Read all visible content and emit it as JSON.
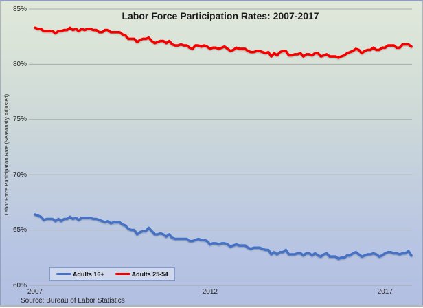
{
  "chart": {
    "title": "Labor Force Participation Rates: 2007-2017",
    "y_axis_title": "Labor Force Participation Rate (Seasonally Adjusted)",
    "source": "Source: Bureau of Labor Statistics"
  },
  "legend": {
    "items": [
      {
        "label": "Adults 16+",
        "color": "#4472C4"
      },
      {
        "label": "Adults 25-54",
        "color": "#F40000"
      }
    ]
  },
  "chart_data": {
    "type": "line",
    "title": "Labor Force Participation Rates: 2007-2017",
    "ylabel": "Labor Force Participation Rate (Seasonally Adjusted)",
    "ylim": [
      60,
      85
    ],
    "ytick_labels": [
      "85%",
      "80%",
      "75%",
      "70%",
      "65%",
      "60%"
    ],
    "ytick_values": [
      85,
      80,
      75,
      70,
      65,
      60
    ],
    "xticks": [
      {
        "label": "2007",
        "month_index": 0
      },
      {
        "label": "2012",
        "month_index": 60
      },
      {
        "label": "2017",
        "month_index": 120
      }
    ],
    "x_unit": "monthly, Jan 2007 through Oct 2017",
    "grid": "horizontal",
    "legend_position": "bottom-left",
    "series": [
      {
        "name": "Adults 16+",
        "color": "#4472C4",
        "values": [
          66.4,
          66.3,
          66.2,
          65.9,
          66.0,
          66.0,
          66.0,
          65.8,
          66.0,
          65.8,
          66.0,
          66.0,
          66.2,
          66.0,
          66.1,
          65.9,
          66.1,
          66.1,
          66.1,
          66.1,
          66.0,
          66.0,
          65.9,
          65.8,
          65.7,
          65.8,
          65.6,
          65.7,
          65.7,
          65.7,
          65.5,
          65.4,
          65.1,
          65.0,
          65.0,
          64.6,
          64.8,
          64.9,
          64.9,
          65.2,
          64.9,
          64.6,
          64.6,
          64.7,
          64.6,
          64.4,
          64.6,
          64.3,
          64.2,
          64.2,
          64.2,
          64.2,
          64.2,
          64.0,
          64.0,
          64.1,
          64.2,
          64.1,
          64.1,
          64.0,
          63.7,
          63.8,
          63.8,
          63.7,
          63.8,
          63.8,
          63.7,
          63.5,
          63.6,
          63.7,
          63.6,
          63.6,
          63.6,
          63.4,
          63.3,
          63.4,
          63.4,
          63.4,
          63.3,
          63.2,
          63.2,
          62.8,
          63.0,
          62.8,
          63.0,
          63.0,
          63.2,
          62.8,
          62.8,
          62.8,
          62.9,
          62.9,
          62.7,
          62.9,
          62.9,
          62.7,
          62.9,
          62.7,
          62.6,
          62.8,
          62.9,
          62.6,
          62.6,
          62.6,
          62.4,
          62.5,
          62.5,
          62.7,
          62.7,
          62.9,
          63.0,
          62.8,
          62.6,
          62.7,
          62.8,
          62.8,
          62.9,
          62.8,
          62.6,
          62.7,
          62.9,
          63.0,
          63.0,
          62.9,
          62.9,
          62.8,
          62.9,
          62.9,
          63.1,
          62.7
        ]
      },
      {
        "name": "Adults 25-54",
        "color": "#F40000",
        "values": [
          83.3,
          83.2,
          83.2,
          83.0,
          83.0,
          83.0,
          83.0,
          82.8,
          83.0,
          83.0,
          83.1,
          83.1,
          83.3,
          83.1,
          83.2,
          83.0,
          83.2,
          83.1,
          83.2,
          83.2,
          83.1,
          83.1,
          82.9,
          82.9,
          83.1,
          83.1,
          82.9,
          82.9,
          82.9,
          82.9,
          82.7,
          82.6,
          82.3,
          82.3,
          82.3,
          82.0,
          82.2,
          82.3,
          82.3,
          82.4,
          82.1,
          81.9,
          82.0,
          82.1,
          82.1,
          81.9,
          82.1,
          81.8,
          81.7,
          81.7,
          81.8,
          81.7,
          81.7,
          81.5,
          81.4,
          81.7,
          81.7,
          81.6,
          81.7,
          81.6,
          81.4,
          81.5,
          81.5,
          81.4,
          81.5,
          81.6,
          81.4,
          81.2,
          81.3,
          81.5,
          81.4,
          81.4,
          81.4,
          81.2,
          81.1,
          81.1,
          81.2,
          81.2,
          81.1,
          81.0,
          81.1,
          80.7,
          81.0,
          80.8,
          81.1,
          81.2,
          81.2,
          80.8,
          80.8,
          80.9,
          80.9,
          81.0,
          80.7,
          80.9,
          80.9,
          80.8,
          81.0,
          81.0,
          80.7,
          80.8,
          80.9,
          80.7,
          80.7,
          80.7,
          80.6,
          80.7,
          80.8,
          81.0,
          81.1,
          81.2,
          81.4,
          81.3,
          81.0,
          81.2,
          81.3,
          81.3,
          81.5,
          81.3,
          81.3,
          81.5,
          81.5,
          81.7,
          81.7,
          81.7,
          81.5,
          81.5,
          81.8,
          81.8,
          81.8,
          81.6
        ]
      }
    ]
  }
}
